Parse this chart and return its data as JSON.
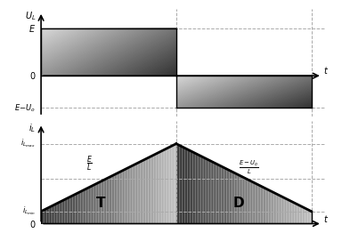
{
  "fig_width": 3.84,
  "fig_height": 2.62,
  "dpi": 100,
  "bg_color": "#ffffff",
  "upper": {
    "E": 0.82,
    "zero": 0.38,
    "EUo": 0.08,
    "DT": 0.5,
    "T": 1.0
  },
  "lower": {
    "imax": 0.78,
    "imin": 0.12,
    "mid": 0.44,
    "DT": 0.5,
    "T": 1.0
  }
}
